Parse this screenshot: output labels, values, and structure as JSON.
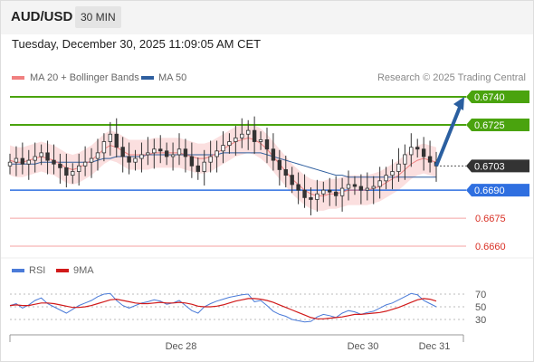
{
  "header": {
    "pair": "AUD/USD",
    "timeframe": "30 MIN"
  },
  "datetime": "Tuesday, December 30, 2025 11:09:05 AM CET",
  "credit": "Research © 2025 Trading Central",
  "colors": {
    "resistance": "#4aa30e",
    "current": "#333333",
    "pivot": "#2f6fe0",
    "support": "#d93025",
    "support_line": "#f4a3a3",
    "ma20": "#f08080",
    "ma50": "#2f5f9f",
    "bands_fill": "#fad4d4",
    "arrow": "#2a5fa0",
    "rsi": "#4b7bd8",
    "rsi_ma": "#d11a1a"
  },
  "chart_data": [
    {
      "type": "candlestick",
      "legend": [
        {
          "name": "MA 20 + Bollinger Bands",
          "color": "#f08080"
        },
        {
          "name": "MA 50",
          "color": "#2f5f9f"
        }
      ],
      "legend_placement": "top-left",
      "x_ticks": [
        "Dec 28",
        "Dec 30",
        "Dec 31"
      ],
      "price_range": [
        0.6653,
        0.6745
      ],
      "levels": [
        {
          "value": 0.674,
          "label": "0.6740",
          "kind": "resistance"
        },
        {
          "value": 0.6725,
          "label": "0.6725",
          "kind": "resistance"
        },
        {
          "value": 0.6703,
          "label": "0.6703",
          "kind": "current"
        },
        {
          "value": 0.669,
          "label": "0.6690",
          "kind": "pivot"
        },
        {
          "value": 0.6675,
          "label": "0.6675",
          "kind": "support"
        },
        {
          "value": 0.666,
          "label": "0.6660",
          "kind": "support"
        }
      ],
      "projection": {
        "from": 0.6703,
        "to": 0.674
      },
      "close_series": [
        0.6705,
        0.6707,
        0.6704,
        0.6706,
        0.6708,
        0.671,
        0.6706,
        0.6704,
        0.6702,
        0.6698,
        0.67,
        0.6703,
        0.6705,
        0.6707,
        0.671,
        0.6716,
        0.672,
        0.6713,
        0.6708,
        0.6705,
        0.6707,
        0.6709,
        0.671,
        0.6712,
        0.6711,
        0.6708,
        0.6709,
        0.6712,
        0.6708,
        0.6703,
        0.67,
        0.6705,
        0.6708,
        0.6711,
        0.6714,
        0.6716,
        0.6718,
        0.672,
        0.6722,
        0.6716,
        0.6717,
        0.6712,
        0.6706,
        0.6701,
        0.6698,
        0.6693,
        0.669,
        0.6686,
        0.6685,
        0.6688,
        0.669,
        0.6689,
        0.6687,
        0.6691,
        0.6693,
        0.6692,
        0.669,
        0.6691,
        0.6692,
        0.6695,
        0.6698,
        0.67,
        0.6704,
        0.6709,
        0.6713,
        0.6712,
        0.6708,
        0.6705,
        0.6703
      ],
      "ma20": [
        0.6706,
        0.6705,
        0.6705,
        0.6706,
        0.6707,
        0.6708,
        0.6707,
        0.6706,
        0.6704,
        0.6702,
        0.6701,
        0.6702,
        0.6704,
        0.6706,
        0.6709,
        0.6712,
        0.6714,
        0.6713,
        0.6711,
        0.6709,
        0.6709,
        0.6709,
        0.6709,
        0.671,
        0.671,
        0.671,
        0.671,
        0.671,
        0.6709,
        0.6708,
        0.6707,
        0.6707,
        0.6708,
        0.671,
        0.6712,
        0.6714,
        0.6716,
        0.6717,
        0.6718,
        0.6717,
        0.6715,
        0.6712,
        0.6708,
        0.6704,
        0.67,
        0.6696,
        0.6693,
        0.669,
        0.6688,
        0.6687,
        0.6687,
        0.6688,
        0.6688,
        0.6689,
        0.669,
        0.669,
        0.669,
        0.669,
        0.6691,
        0.6692,
        0.6694,
        0.6696,
        0.6698,
        0.6701,
        0.6704,
        0.6706,
        0.6707,
        0.6706,
        0.6705
      ],
      "ma50": [
        0.6704,
        0.6704,
        0.6704,
        0.6704,
        0.6704,
        0.6705,
        0.6705,
        0.6705,
        0.6705,
        0.6705,
        0.6705,
        0.6705,
        0.6705,
        0.6705,
        0.6706,
        0.6707,
        0.6707,
        0.6708,
        0.6708,
        0.6708,
        0.6708,
        0.6708,
        0.6709,
        0.6709,
        0.6709,
        0.6709,
        0.6709,
        0.6709,
        0.6709,
        0.6709,
        0.6709,
        0.6709,
        0.6709,
        0.6709,
        0.671,
        0.671,
        0.671,
        0.671,
        0.671,
        0.671,
        0.671,
        0.6709,
        0.6708,
        0.6707,
        0.6706,
        0.6705,
        0.6704,
        0.6703,
        0.6702,
        0.6701,
        0.67,
        0.6699,
        0.6698,
        0.6698,
        0.6697,
        0.6697,
        0.6697,
        0.6697,
        0.6697,
        0.6697,
        0.6697,
        0.6697,
        0.6697,
        0.6697,
        0.6697,
        0.6697,
        0.6697,
        0.6697,
        0.6697
      ],
      "band_width": 0.0008
    },
    {
      "type": "line",
      "legend": [
        {
          "name": "RSI",
          "color": "#4b7bd8"
        },
        {
          "name": "9MA",
          "color": "#d11a1a"
        }
      ],
      "y_ticks": [
        70,
        50,
        30
      ],
      "ylim": [
        20,
        80
      ],
      "rsi": [
        52,
        55,
        48,
        53,
        60,
        64,
        55,
        50,
        45,
        40,
        46,
        52,
        56,
        60,
        66,
        70,
        71,
        60,
        52,
        48,
        52,
        56,
        58,
        61,
        59,
        54,
        56,
        60,
        52,
        44,
        40,
        50,
        55,
        59,
        62,
        65,
        67,
        69,
        70,
        58,
        60,
        52,
        43,
        38,
        35,
        30,
        28,
        26,
        27,
        34,
        38,
        36,
        33,
        40,
        44,
        42,
        38,
        41,
        43,
        48,
        53,
        56,
        61,
        66,
        71,
        69,
        60,
        55,
        50
      ],
      "rsi_ma": [
        52,
        53,
        52,
        52,
        54,
        56,
        56,
        55,
        53,
        51,
        49,
        49,
        50,
        52,
        55,
        58,
        61,
        62,
        60,
        58,
        56,
        55,
        55,
        56,
        57,
        56,
        56,
        57,
        56,
        54,
        51,
        50,
        50,
        51,
        53,
        56,
        59,
        61,
        63,
        63,
        62,
        60,
        57,
        53,
        49,
        45,
        41,
        37,
        33,
        31,
        31,
        32,
        33,
        34,
        36,
        38,
        38,
        39,
        40,
        41,
        43,
        46,
        49,
        53,
        57,
        61,
        63,
        62,
        59
      ]
    }
  ]
}
